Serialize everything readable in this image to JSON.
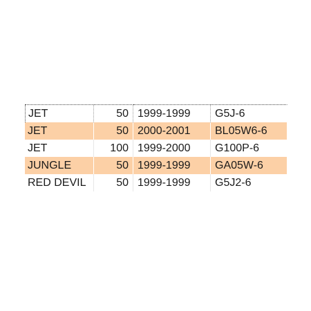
{
  "grid": {
    "rows": [
      {
        "name": "JET",
        "size": "50",
        "years": "1999-1999",
        "code": "G5J-6",
        "highlighted": false
      },
      {
        "name": "JET",
        "size": "50",
        "years": "2000-2001",
        "code": "BL05W6-6",
        "highlighted": true
      },
      {
        "name": "JET",
        "size": "100",
        "years": "1999-2000",
        "code": "G100P-6",
        "highlighted": false
      },
      {
        "name": "JUNGLE",
        "size": "50",
        "years": "1999-1999",
        "code": "GA05W-6",
        "highlighted": true
      },
      {
        "name": "RED DEVIL",
        "size": "50",
        "years": "1999-1999",
        "code": "G5J2-6",
        "highlighted": false
      }
    ],
    "highlight_color": "#fcd0a6"
  }
}
